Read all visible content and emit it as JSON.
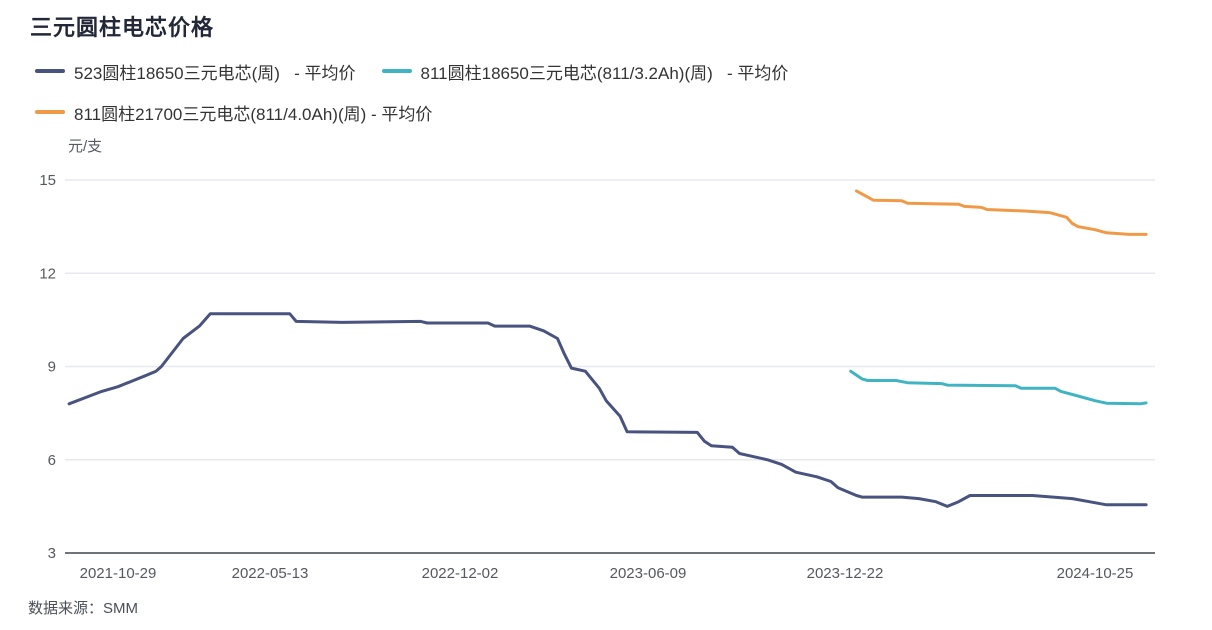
{
  "title": "三元圆柱电芯价格",
  "unit_label": "元/支",
  "source_label": "数据来源：SMM",
  "colors": {
    "title_text": "#232838",
    "legend_text": "#333333",
    "axis_text": "#55585f",
    "grid_line": "#e7e9ef",
    "axis_line": "#6f737a",
    "series_523_18650": "#49537f",
    "series_811_18650": "#41b4c4",
    "series_811_21700": "#f09a47"
  },
  "legend": [
    {
      "id": "523-18650",
      "label": "523圆柱18650三元电芯(周)   - 平均价",
      "color": "#49537f"
    },
    {
      "id": "811-18650",
      "label": "811圆柱18650三元电芯(811/3.2Ah)(周)   - 平均价",
      "color": "#41b4c4"
    },
    {
      "id": "811-21700",
      "label": "811圆柱21700三元电芯(811/4.0Ah)(周) - 平均价",
      "color": "#f09a47"
    }
  ],
  "chart_data": {
    "type": "line",
    "title": "三元圆柱电芯价格",
    "xlabel": "",
    "ylabel": "元/支",
    "ylim": [
      3,
      15
    ],
    "yticks": [
      15,
      12,
      9,
      6,
      3
    ],
    "xticks": [
      "2021-10-29",
      "2022-05-13",
      "2022-12-02",
      "2023-06-09",
      "2023-12-22",
      "2024-10-25"
    ],
    "grid": true,
    "legend_position": "top",
    "series": [
      {
        "id": "523-18650",
        "name": "523圆柱18650三元电芯(周) - 平均价",
        "color": "#49537f",
        "points": [
          [
            "2021-08-27",
            7.8
          ],
          [
            "2021-10-08",
            8.2
          ],
          [
            "2021-10-29",
            8.35
          ],
          [
            "2021-12-03",
            8.7
          ],
          [
            "2021-12-17",
            8.85
          ],
          [
            "2021-12-24",
            9.0
          ],
          [
            "2022-01-21",
            9.9
          ],
          [
            "2022-02-11",
            10.3
          ],
          [
            "2022-02-25",
            10.7
          ],
          [
            "2022-06-03",
            10.7
          ],
          [
            "2022-06-10",
            10.45
          ],
          [
            "2022-07-29",
            10.42
          ],
          [
            "2022-10-21",
            10.45
          ],
          [
            "2022-10-28",
            10.4
          ],
          [
            "2022-12-30",
            10.4
          ],
          [
            "2023-01-06",
            10.3
          ],
          [
            "2023-02-10",
            10.3
          ],
          [
            "2023-02-24",
            10.15
          ],
          [
            "2023-03-10",
            9.9
          ],
          [
            "2023-03-17",
            9.4
          ],
          [
            "2023-03-24",
            8.95
          ],
          [
            "2023-04-07",
            8.85
          ],
          [
            "2023-04-21",
            8.3
          ],
          [
            "2023-04-28",
            7.9
          ],
          [
            "2023-05-12",
            7.4
          ],
          [
            "2023-05-19",
            6.9
          ],
          [
            "2023-07-28",
            6.88
          ],
          [
            "2023-08-04",
            6.6
          ],
          [
            "2023-08-11",
            6.45
          ],
          [
            "2023-09-01",
            6.4
          ],
          [
            "2023-09-08",
            6.2
          ],
          [
            "2023-09-15",
            6.15
          ],
          [
            "2023-10-06",
            6.0
          ],
          [
            "2023-10-20",
            5.85
          ],
          [
            "2023-11-03",
            5.6
          ],
          [
            "2023-11-24",
            5.45
          ],
          [
            "2023-12-08",
            5.3
          ],
          [
            "2023-12-15",
            5.1
          ],
          [
            "2024-01-05",
            4.85
          ],
          [
            "2024-01-12",
            4.8
          ],
          [
            "2024-03-01",
            4.8
          ],
          [
            "2024-03-22",
            4.75
          ],
          [
            "2024-04-12",
            4.65
          ],
          [
            "2024-04-26",
            4.5
          ],
          [
            "2024-05-10",
            4.65
          ],
          [
            "2024-05-24",
            4.85
          ],
          [
            "2024-08-09",
            4.85
          ],
          [
            "2024-09-27",
            4.75
          ],
          [
            "2024-10-18",
            4.65
          ],
          [
            "2024-11-08",
            4.55
          ],
          [
            "2024-12-27",
            4.55
          ]
        ]
      },
      {
        "id": "811-18650",
        "name": "811圆柱18650三元电芯(811/3.2Ah)(周) - 平均价",
        "color": "#41b4c4",
        "points": [
          [
            "2023-12-29",
            8.85
          ],
          [
            "2024-01-12",
            8.6
          ],
          [
            "2024-01-19",
            8.55
          ],
          [
            "2024-02-23",
            8.55
          ],
          [
            "2024-03-08",
            8.48
          ],
          [
            "2024-04-19",
            8.45
          ],
          [
            "2024-04-26",
            8.4
          ],
          [
            "2024-07-19",
            8.38
          ],
          [
            "2024-07-26",
            8.3
          ],
          [
            "2024-09-06",
            8.3
          ],
          [
            "2024-09-13",
            8.2
          ],
          [
            "2024-10-04",
            8.05
          ],
          [
            "2024-10-25",
            7.9
          ],
          [
            "2024-11-08",
            7.82
          ],
          [
            "2024-12-20",
            7.8
          ],
          [
            "2024-12-27",
            7.83
          ]
        ]
      },
      {
        "id": "811-21700",
        "name": "811圆柱21700三元电芯(811/4.0Ah)(周) - 平均价",
        "color": "#f09a47",
        "points": [
          [
            "2024-01-05",
            14.65
          ],
          [
            "2024-01-19",
            14.45
          ],
          [
            "2024-01-26",
            14.35
          ],
          [
            "2024-03-01",
            14.33
          ],
          [
            "2024-03-08",
            14.25
          ],
          [
            "2024-05-10",
            14.22
          ],
          [
            "2024-05-17",
            14.15
          ],
          [
            "2024-06-07",
            14.12
          ],
          [
            "2024-06-14",
            14.05
          ],
          [
            "2024-08-02",
            14.0
          ],
          [
            "2024-08-30",
            13.95
          ],
          [
            "2024-09-20",
            13.8
          ],
          [
            "2024-09-27",
            13.6
          ],
          [
            "2024-10-04",
            13.5
          ],
          [
            "2024-10-25",
            13.4
          ],
          [
            "2024-11-08",
            13.3
          ],
          [
            "2024-12-06",
            13.25
          ],
          [
            "2024-12-27",
            13.25
          ]
        ]
      }
    ]
  }
}
